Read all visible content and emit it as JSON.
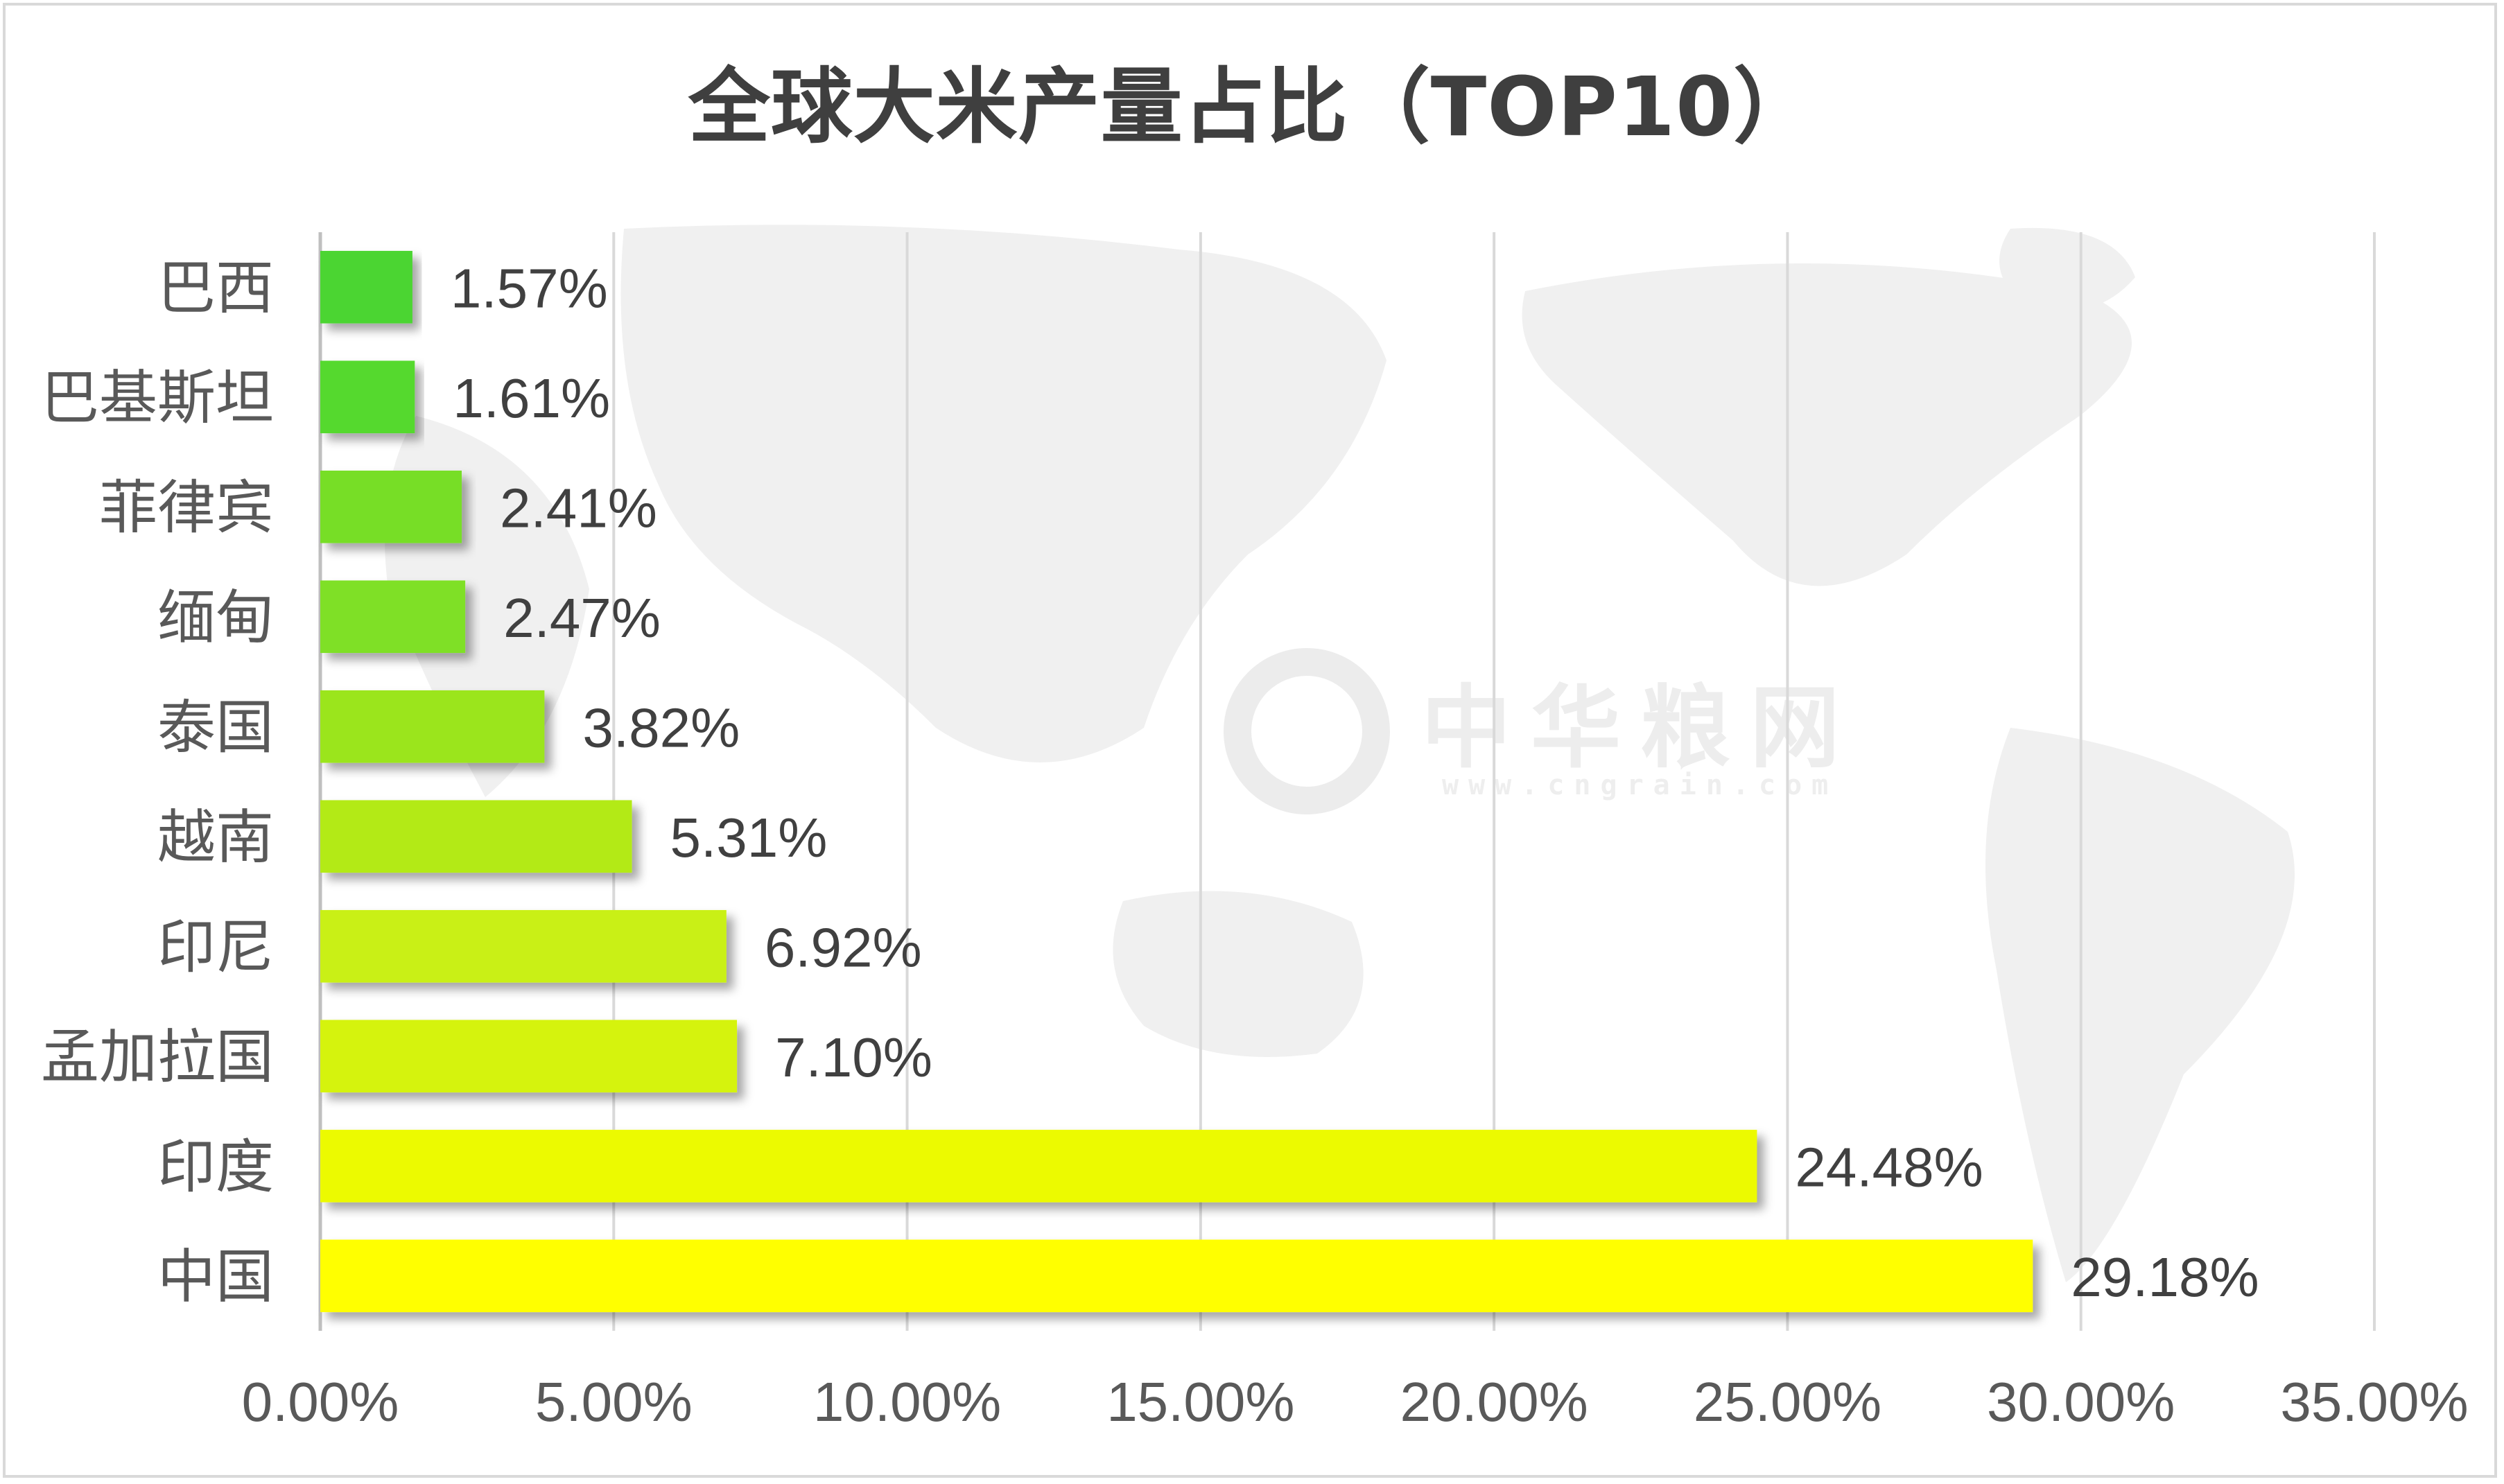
{
  "chart_data": {
    "type": "bar",
    "orientation": "horizontal",
    "title": "全球大米产量占比（TOP10）",
    "xlabel": "",
    "ylabel": "",
    "categories": [
      "巴西",
      "巴基斯坦",
      "菲律宾",
      "缅甸",
      "泰国",
      "越南",
      "印尼",
      "孟加拉国",
      "印度",
      "中国"
    ],
    "values": [
      1.57,
      1.61,
      2.41,
      2.47,
      3.82,
      5.31,
      6.92,
      7.1,
      24.48,
      29.18
    ],
    "value_labels": [
      "1.57%",
      "1.61%",
      "2.41%",
      "2.47%",
      "3.82%",
      "5.31%",
      "6.92%",
      "7.10%",
      "24.48%",
      "29.18%"
    ],
    "xlim": [
      0,
      35
    ],
    "ticks": [
      0,
      5,
      10,
      15,
      20,
      25,
      30,
      35
    ],
    "tick_labels": [
      "0.00%",
      "5.00%",
      "10.00%",
      "15.00%",
      "20.00%",
      "25.00%",
      "30.00%",
      "35.00%"
    ],
    "bar_colors": [
      "#4cd531",
      "#55d92d",
      "#77de28",
      "#7fe025",
      "#9be51f",
      "#b3ea18",
      "#c9f012",
      "#d5f30e",
      "#ecfa06",
      "#ffff00"
    ],
    "grid": true,
    "legend": "none",
    "background": "world-map"
  },
  "watermark": {
    "logo_text": "中华粮网",
    "url": "www.cngrain.com"
  }
}
